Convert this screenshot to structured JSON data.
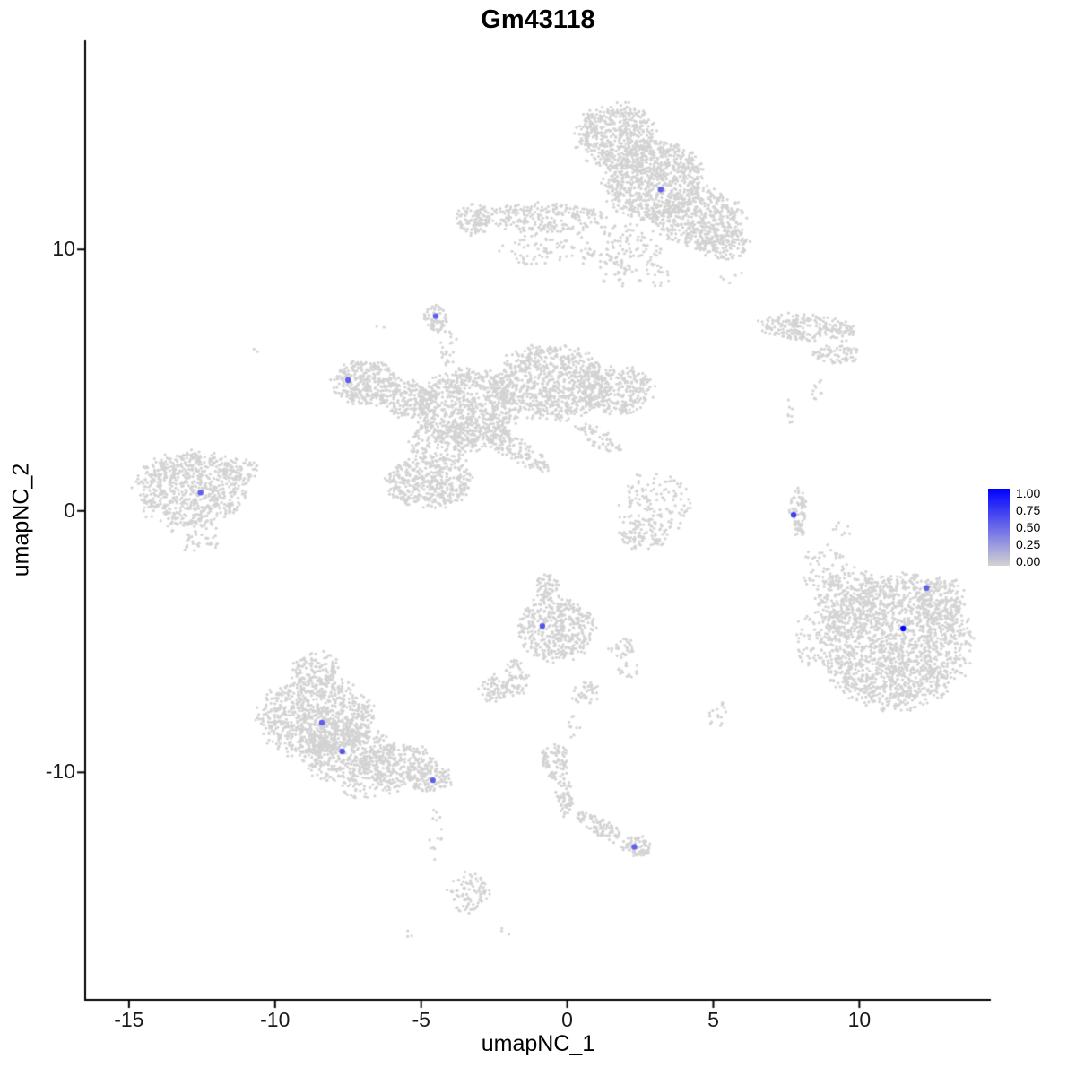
{
  "chart_data": {
    "type": "scatter",
    "title": "Gm43118",
    "xlabel": "umapNC_1",
    "ylabel": "umapNC_2",
    "x_range": [
      -16.5,
      14.5
    ],
    "y_range": [
      -18.7,
      18.0
    ],
    "x_ticks": [
      {
        "value": -15,
        "label": "-15"
      },
      {
        "value": -10,
        "label": "-10"
      },
      {
        "value": -5,
        "label": "-5"
      },
      {
        "value": 0,
        "label": "0"
      },
      {
        "value": 5,
        "label": "5"
      },
      {
        "value": 10,
        "label": "10"
      }
    ],
    "y_ticks": [
      {
        "value": 10,
        "label": "10"
      },
      {
        "value": 0,
        "label": "0"
      },
      {
        "value": -10,
        "label": "-10"
      }
    ],
    "grid": false,
    "background_point_color": "#d3d3d3",
    "colormap": {
      "low": "#d3d3d3",
      "high": "#0000ff"
    },
    "legend": {
      "position": "right",
      "ticks": [
        "1.00",
        "0.75",
        "0.50",
        "0.25",
        "0.00"
      ]
    },
    "clusters": [
      {
        "cx": 1.7,
        "cy": 14.3,
        "rx": 1.35,
        "ry": 1.25,
        "rot": 0,
        "n": 520
      },
      {
        "cx": 3.0,
        "cy": 12.6,
        "rx": 1.7,
        "ry": 1.5,
        "rot": 0,
        "n": 850
      },
      {
        "cx": 4.5,
        "cy": 11.2,
        "rx": 1.5,
        "ry": 1.1,
        "rot": 0,
        "n": 450
      },
      {
        "cx": 5.3,
        "cy": 10.2,
        "rx": 0.9,
        "ry": 0.6,
        "rot": 0,
        "n": 130
      },
      {
        "cx": -0.9,
        "cy": 11.2,
        "rx": 2.3,
        "ry": 0.55,
        "rot": 0,
        "n": 260
      },
      {
        "cx": -3.2,
        "cy": 11.2,
        "rx": 0.55,
        "ry": 0.65,
        "rot": 0,
        "n": 90
      },
      {
        "cx": 1.7,
        "cy": 10.1,
        "rx": 1.6,
        "ry": 0.9,
        "rot": 0,
        "n": 120
      },
      {
        "cx": -1.0,
        "cy": 10.0,
        "rx": 1.2,
        "ry": 0.6,
        "rot": 0,
        "n": 60
      },
      {
        "cx": 2.4,
        "cy": 9.0,
        "rx": 1.2,
        "ry": 0.5,
        "rot": 0,
        "n": 40
      },
      {
        "cx": 5.6,
        "cy": 9.0,
        "rx": 0.35,
        "ry": 0.35,
        "rot": 0,
        "n": 5
      },
      {
        "cx": -4.5,
        "cy": 7.35,
        "rx": 0.42,
        "ry": 0.52,
        "rot": 0,
        "n": 70
      },
      {
        "cx": -4.05,
        "cy": 6.2,
        "rx": 0.3,
        "ry": 0.8,
        "rot": 0,
        "n": 22
      },
      {
        "cx": -6.9,
        "cy": 4.9,
        "rx": 1.15,
        "ry": 0.85,
        "rot": 0,
        "n": 320
      },
      {
        "cx": -5.4,
        "cy": 4.3,
        "rx": 1.0,
        "ry": 0.7,
        "rot": 0,
        "n": 200
      },
      {
        "cx": -3.4,
        "cy": 3.9,
        "rx": 1.7,
        "ry": 1.5,
        "rot": 0,
        "n": 800
      },
      {
        "cx": -0.6,
        "cy": 4.9,
        "rx": 1.9,
        "ry": 1.4,
        "rot": 0,
        "n": 800
      },
      {
        "cx": 1.7,
        "cy": 4.6,
        "rx": 1.2,
        "ry": 0.9,
        "rot": 0,
        "n": 300
      },
      {
        "cx": -4.7,
        "cy": 1.1,
        "rx": 1.5,
        "ry": 0.95,
        "rot": 0,
        "n": 420
      },
      {
        "cx": -4.3,
        "cy": 2.6,
        "rx": 1.2,
        "ry": 0.8,
        "rot": 0,
        "n": 150
      },
      {
        "cx": -1.8,
        "cy": 2.4,
        "rx": 1.4,
        "ry": 0.45,
        "rot": -35,
        "n": 150
      },
      {
        "cx": 1.1,
        "cy": 2.8,
        "rx": 0.9,
        "ry": 0.35,
        "rot": -35,
        "n": 60
      },
      {
        "cx": -12.9,
        "cy": 0.8,
        "rx": 1.8,
        "ry": 1.5,
        "rot": 0,
        "n": 700
      },
      {
        "cx": -11.2,
        "cy": 1.5,
        "rx": 0.6,
        "ry": 0.5,
        "rot": 0,
        "n": 70
      },
      {
        "cx": -12.6,
        "cy": -1.2,
        "rx": 0.7,
        "ry": 0.35,
        "rot": 0,
        "n": 30
      },
      {
        "cx": 8.2,
        "cy": 7.0,
        "rx": 1.7,
        "ry": 0.5,
        "rot": -5,
        "n": 230
      },
      {
        "cx": 9.2,
        "cy": 6.0,
        "rx": 0.8,
        "ry": 0.35,
        "rot": 0,
        "n": 70
      },
      {
        "cx": 8.55,
        "cy": 4.6,
        "rx": 0.25,
        "ry": 0.5,
        "rot": 0,
        "n": 10
      },
      {
        "cx": 7.9,
        "cy": -0.1,
        "rx": 0.3,
        "ry": 0.95,
        "rot": 0,
        "n": 80
      },
      {
        "cx": 3.0,
        "cy": 0.2,
        "rx": 1.2,
        "ry": 1.3,
        "rot": 0,
        "n": 140
      },
      {
        "cx": 2.6,
        "cy": -0.9,
        "rx": 0.8,
        "ry": 0.6,
        "rot": 0,
        "n": 80
      },
      {
        "cx": -0.7,
        "cy": -2.9,
        "rx": 0.4,
        "ry": 0.5,
        "rot": 0,
        "n": 60
      },
      {
        "cx": -0.4,
        "cy": -4.5,
        "rx": 1.3,
        "ry": 1.2,
        "rot": 0,
        "n": 430
      },
      {
        "cx": -1.75,
        "cy": -6.4,
        "rx": 0.4,
        "ry": 0.7,
        "rot": 0,
        "n": 60
      },
      {
        "cx": -2.5,
        "cy": -6.8,
        "rx": 0.5,
        "ry": 0.5,
        "rot": 0,
        "n": 70
      },
      {
        "cx": 1.9,
        "cy": -5.3,
        "rx": 0.45,
        "ry": 0.4,
        "rot": 0,
        "n": 30
      },
      {
        "cx": 0.6,
        "cy": -7.0,
        "rx": 0.5,
        "ry": 0.45,
        "rot": 0,
        "n": 40
      },
      {
        "cx": 0.2,
        "cy": -8.3,
        "rx": 0.35,
        "ry": 0.45,
        "rot": 0,
        "n": 10
      },
      {
        "cx": -8.6,
        "cy": -7.9,
        "rx": 1.9,
        "ry": 1.5,
        "rot": 0,
        "n": 900
      },
      {
        "cx": -7.5,
        "cy": -9.3,
        "rx": 1.6,
        "ry": 1.1,
        "rot": 0,
        "n": 450
      },
      {
        "cx": -5.8,
        "cy": -9.7,
        "rx": 1.3,
        "ry": 0.8,
        "rot": 0,
        "n": 260
      },
      {
        "cx": -4.7,
        "cy": -10.2,
        "rx": 0.8,
        "ry": 0.5,
        "rot": 0,
        "n": 110
      },
      {
        "cx": -8.6,
        "cy": -6.0,
        "rx": 0.8,
        "ry": 0.6,
        "rot": 0,
        "n": 110
      },
      {
        "cx": -6.8,
        "cy": -10.6,
        "rx": 1.2,
        "ry": 0.4,
        "rot": 0,
        "n": 50
      },
      {
        "cx": -4.5,
        "cy": -12.3,
        "rx": 0.25,
        "ry": 1.1,
        "rot": 0,
        "n": 14
      },
      {
        "cx": -3.4,
        "cy": -14.6,
        "rx": 0.7,
        "ry": 0.8,
        "rot": 0,
        "n": 90
      },
      {
        "cx": -5.4,
        "cy": -16.1,
        "rx": 0.2,
        "ry": 0.2,
        "rot": 0,
        "n": 3
      },
      {
        "cx": -2.2,
        "cy": -16.1,
        "rx": 0.3,
        "ry": 0.15,
        "rot": 0,
        "n": 3
      },
      {
        "cx": 11.2,
        "cy": -5.0,
        "rx": 2.5,
        "ry": 2.5,
        "rot": 0,
        "n": 1800
      },
      {
        "cx": 9.6,
        "cy": -3.4,
        "rx": 1.2,
        "ry": 1.2,
        "rot": 0,
        "n": 220
      },
      {
        "cx": 12.8,
        "cy": -3.4,
        "rx": 0.8,
        "ry": 0.9,
        "rot": 0,
        "n": 130
      },
      {
        "cx": 8.8,
        "cy": -2.2,
        "rx": 0.8,
        "ry": 0.9,
        "rot": 0,
        "n": 45
      },
      {
        "cx": 8.3,
        "cy": -5.0,
        "rx": 0.5,
        "ry": 1.0,
        "rot": 0,
        "n": 45
      },
      {
        "cx": 9.4,
        "cy": -0.9,
        "rx": 0.4,
        "ry": 0.5,
        "rot": 0,
        "n": 8
      },
      {
        "cx": -0.4,
        "cy": -9.6,
        "rx": 0.5,
        "ry": 0.65,
        "rot": 0,
        "n": 90
      },
      {
        "cx": -0.1,
        "cy": -10.9,
        "rx": 0.3,
        "ry": 0.75,
        "rot": 0,
        "n": 60
      },
      {
        "cx": 1.15,
        "cy": -12.1,
        "rx": 1.0,
        "ry": 0.3,
        "rot": -33,
        "n": 90
      },
      {
        "cx": 2.35,
        "cy": -12.85,
        "rx": 0.5,
        "ry": 0.4,
        "rot": 0,
        "n": 70
      },
      {
        "cx": 5.15,
        "cy": -7.8,
        "rx": 0.3,
        "ry": 0.55,
        "rot": 0,
        "n": 18
      },
      {
        "cx": 2.1,
        "cy": -6.1,
        "rx": 0.35,
        "ry": 0.3,
        "rot": 0,
        "n": 15
      },
      {
        "cx": -10.6,
        "cy": 6.2,
        "rx": 0.15,
        "ry": 0.15,
        "rot": 0,
        "n": 2
      },
      {
        "cx": -6.4,
        "cy": 7.0,
        "rx": 0.15,
        "ry": 0.15,
        "rot": 0,
        "n": 2
      },
      {
        "cx": 7.6,
        "cy": 3.9,
        "rx": 0.25,
        "ry": 0.6,
        "rot": 0,
        "n": 8
      }
    ],
    "expressing_cells": [
      {
        "x": 3.2,
        "y": 12.3,
        "value": 0.55
      },
      {
        "x": -4.5,
        "y": 7.45,
        "value": 0.55
      },
      {
        "x": -7.5,
        "y": 5.0,
        "value": 0.55
      },
      {
        "x": -12.55,
        "y": 0.7,
        "value": 0.55
      },
      {
        "x": 7.75,
        "y": -0.15,
        "value": 0.7
      },
      {
        "x": 12.3,
        "y": -2.95,
        "value": 0.55
      },
      {
        "x": 11.5,
        "y": -4.5,
        "value": 1.0
      },
      {
        "x": -0.85,
        "y": -4.4,
        "value": 0.6
      },
      {
        "x": -8.4,
        "y": -8.1,
        "value": 0.55
      },
      {
        "x": -7.7,
        "y": -9.2,
        "value": 0.6
      },
      {
        "x": -4.6,
        "y": -10.3,
        "value": 0.55
      },
      {
        "x": 2.3,
        "y": -12.85,
        "value": 0.55
      }
    ]
  }
}
